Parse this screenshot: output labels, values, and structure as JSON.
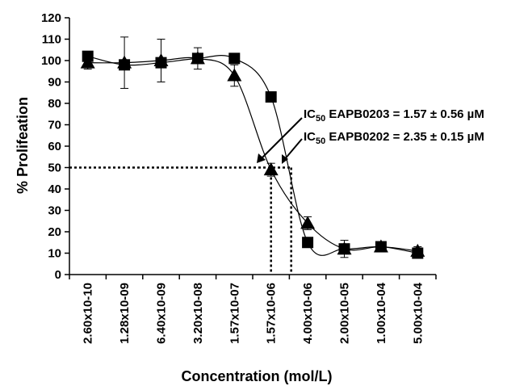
{
  "chart_data": {
    "type": "line",
    "title": "",
    "xlabel": "Concentration (mol/L)",
    "ylabel": "% Prolifeation",
    "categories": [
      "2.60x10-10",
      "1.28x10-09",
      "6.40x10-09",
      "3.20x10-08",
      "1.57x10-07",
      "1.57x10-06",
      "4.00x10-06",
      "2.00x10-05",
      "1.00x10-04",
      "5.00x10-04"
    ],
    "ylim": [
      0,
      120
    ],
    "yticks": [
      0,
      10,
      20,
      30,
      40,
      50,
      60,
      70,
      80,
      90,
      100,
      110,
      120
    ],
    "grid": false,
    "series": [
      {
        "marker": "square",
        "values": [
          102,
          98,
          99,
          101,
          101,
          83,
          15,
          12,
          13,
          10
        ],
        "errors": [
          2,
          2,
          2,
          2,
          2,
          2,
          2,
          2,
          2,
          2
        ]
      },
      {
        "marker": "triangle",
        "values": [
          99,
          99,
          100,
          101,
          93,
          49,
          24,
          12,
          13,
          11
        ],
        "errors": [
          3,
          12,
          10,
          5,
          5,
          3,
          3,
          4,
          2,
          2
        ]
      }
    ],
    "annotations": [
      {
        "prefix": "IC",
        "subscript": "50",
        "text": " EAPB0203 = 1.57 ± 0.56 µM"
      },
      {
        "prefix": "IC",
        "subscript": "50",
        "text": " EAPB0202 = 2.35 ± 0.15 µM"
      }
    ],
    "reference_lines": {
      "y": 50,
      "x_cat_positions": [
        5.0,
        5.55
      ]
    }
  }
}
